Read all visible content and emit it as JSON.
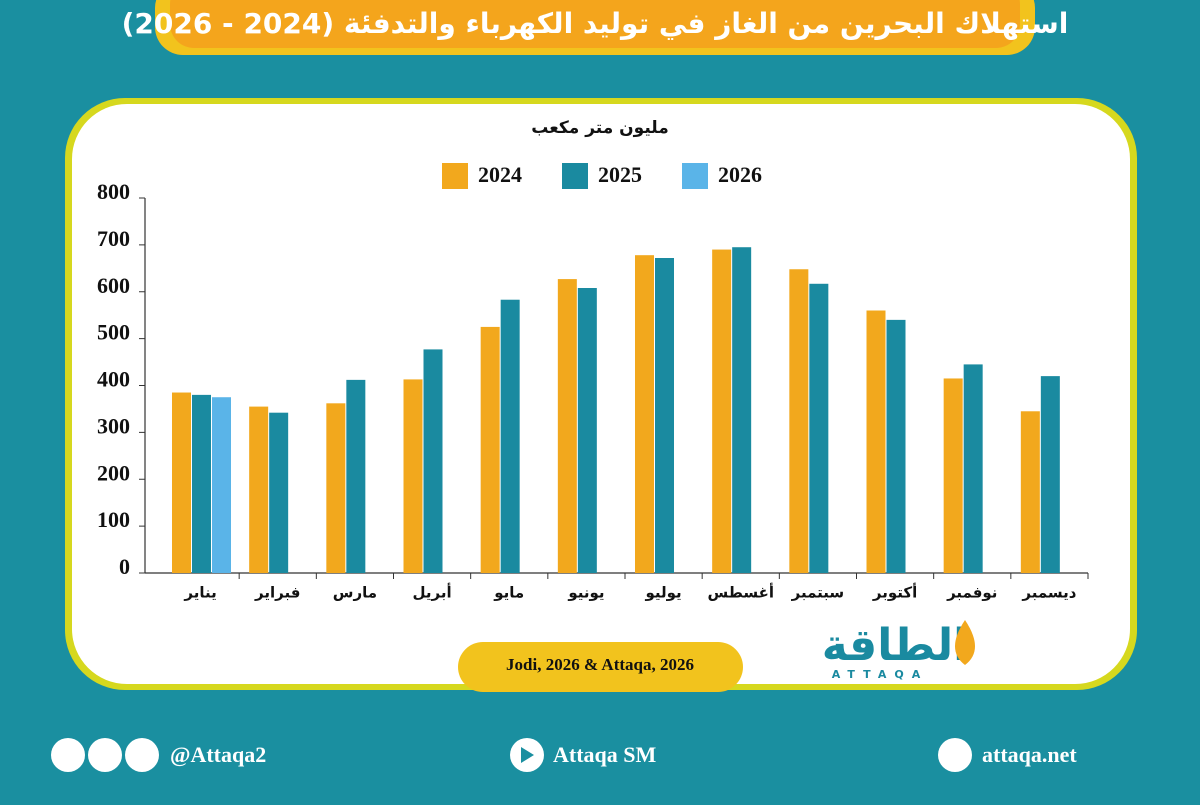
{
  "header": {
    "title": "استهلاك البحرين من الغاز في توليد الكهرباء والتدفئة (2024 - 2026)"
  },
  "chart_data": {
    "type": "bar",
    "y_label": "مليون متر مكعب",
    "categories": [
      "يناير",
      "فبراير",
      "مارس",
      "أبريل",
      "مايو",
      "يونيو",
      "يوليو",
      "أغسطس",
      "سبتمبر",
      "أكتوبر",
      "نوفمبر",
      "ديسمبر"
    ],
    "series": [
      {
        "name": "2024",
        "color": "#f2a81d",
        "values": [
          385,
          355,
          362,
          413,
          525,
          627,
          678,
          690,
          648,
          560,
          415,
          345
        ]
      },
      {
        "name": "2025",
        "color": "#1a8aa0",
        "values": [
          380,
          342,
          412,
          477,
          583,
          608,
          672,
          695,
          617,
          540,
          445,
          420
        ]
      },
      {
        "name": "2026",
        "color": "#5ab4e8",
        "values": [
          375,
          null,
          null,
          null,
          null,
          null,
          null,
          null,
          null,
          null,
          null,
          null
        ]
      }
    ],
    "ylim": [
      0,
      800
    ],
    "yticks": [
      0,
      100,
      200,
      300,
      400,
      500,
      600,
      700,
      800
    ]
  },
  "source": "Jodi, 2026 & Attaqa, 2026",
  "logo": {
    "arabic": "الطاقة",
    "latin": "ATTAQA"
  },
  "footer": {
    "handle": "@Attaqa2",
    "youtube": "Attaqa SM",
    "website": "attaqa.net"
  }
}
